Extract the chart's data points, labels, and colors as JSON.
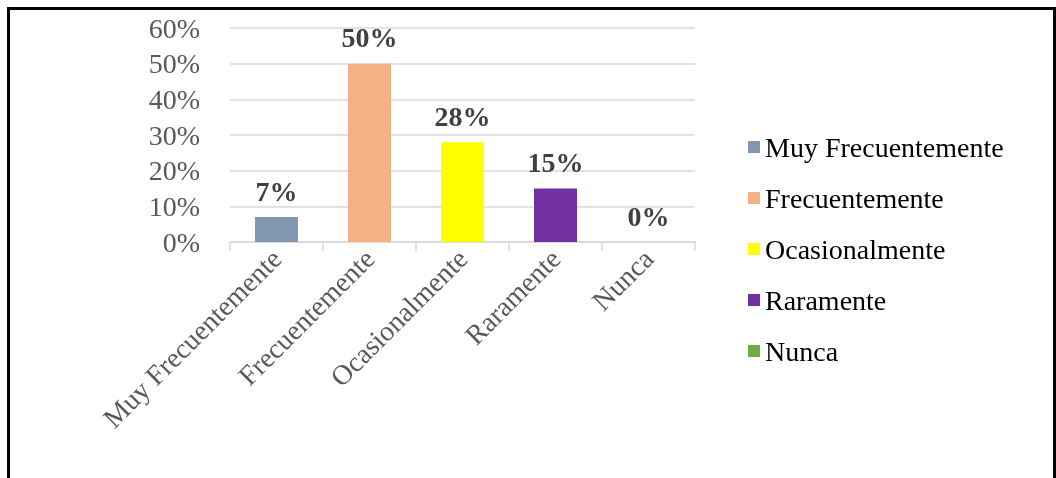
{
  "chart_data": {
    "type": "bar",
    "categories": [
      "Muy Frecuentemente",
      "Frecuentemente",
      "Ocasionalmente",
      "Raramente",
      "Nunca"
    ],
    "series": [
      {
        "name": "Muy Frecuentemente",
        "color": "#8497b0",
        "values": [
          7,
          null,
          null,
          null,
          null
        ],
        "value_labels": [
          "7%",
          null,
          null,
          null,
          null
        ]
      },
      {
        "name": "Frecuentemente",
        "color": "#f4b183",
        "values": [
          null,
          50,
          null,
          null,
          null
        ],
        "value_labels": [
          null,
          "50%",
          null,
          null,
          null
        ]
      },
      {
        "name": "Ocasionalmente",
        "color": "#ffff00",
        "values": [
          null,
          null,
          28,
          null,
          null
        ],
        "value_labels": [
          null,
          null,
          "28%",
          null,
          null
        ]
      },
      {
        "name": "Raramente",
        "color": "#7030a0",
        "values": [
          null,
          null,
          null,
          15,
          null
        ],
        "value_labels": [
          null,
          null,
          null,
          "15%",
          null
        ]
      },
      {
        "name": "Nunca",
        "color": "#70ad47",
        "values": [
          null,
          null,
          null,
          null,
          0
        ],
        "value_labels": [
          null,
          null,
          null,
          null,
          "0%"
        ]
      }
    ],
    "stacked": true,
    "ylim": [
      0,
      60
    ],
    "yticks": [
      {
        "value": 0,
        "label": "0%"
      },
      {
        "value": 10,
        "label": "10%"
      },
      {
        "value": 20,
        "label": "20%"
      },
      {
        "value": 30,
        "label": "30%"
      },
      {
        "value": 40,
        "label": "40%"
      },
      {
        "value": 50,
        "label": "50%"
      },
      {
        "value": 60,
        "label": "60%"
      }
    ],
    "grid": "y",
    "legend": "right"
  }
}
